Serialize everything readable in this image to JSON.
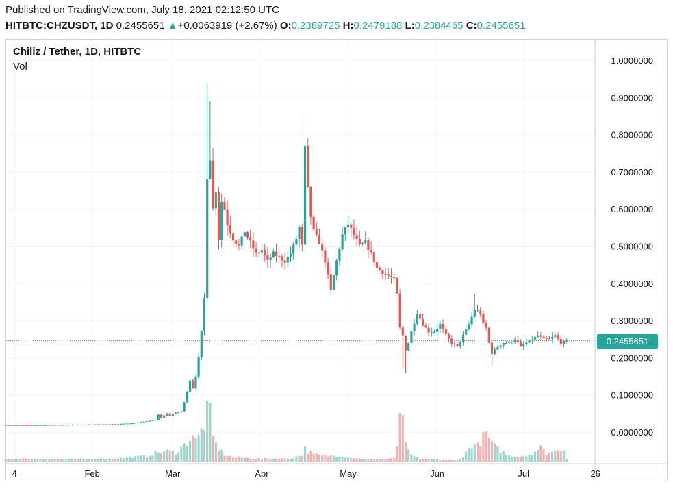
{
  "header": {
    "published": "Published on TradingView.com, July 18, 2021 02:12:50 UTC",
    "symbol": "HITBTC:CHZUSDT, 1D",
    "last": "0.2455651",
    "change_arrow": "▲",
    "change": "+0.0063919 (+2.67%)",
    "o_label": "O:",
    "o_value": "0.2389725",
    "h_label": "H:",
    "h_value": "0.2479188",
    "l_label": "L:",
    "l_value": "0.2384465",
    "c_label": "C:",
    "c_value": "0.2455651"
  },
  "legend": {
    "title": "Chiliz / Tether, 1D, HITBTC",
    "volume_label": "Vol"
  },
  "price_tag": "0.2455651",
  "colors": {
    "up": "#26a69a",
    "down": "#ef5350",
    "up_vol": "#9fd5cf",
    "down_vol": "#f3b1af",
    "grid": "#f0f3fa"
  },
  "chart_data": {
    "type": "candlestick",
    "title": "Chiliz / Tether, 1D, HITBTC",
    "y_axis_labels": [
      "1.0000000",
      "0.9000000",
      "0.8000000",
      "0.7000000",
      "0.6000000",
      "0.5000000",
      "0.4000000",
      "0.3000000",
      "0.2000000",
      "0.1000000",
      "0.0000000"
    ],
    "y_axis_values": [
      1.0,
      0.9,
      0.8,
      0.7,
      0.6,
      0.5,
      0.4,
      0.3,
      0.2,
      0.1,
      0.0
    ],
    "ylim": [
      -0.06,
      1.06
    ],
    "x_axis_labels": [
      "4",
      "Feb",
      "Mar",
      "Apr",
      "May",
      "Jun",
      "Jul",
      "26"
    ],
    "x_axis_days": [
      4,
      31,
      59,
      90,
      120,
      151,
      181,
      206
    ],
    "last_price": 0.2455651,
    "volume_label": "Vol",
    "anchors": [
      [
        1,
        0.019
      ],
      [
        10,
        0.0185
      ],
      [
        20,
        0.0195
      ],
      [
        30,
        0.0205
      ],
      [
        40,
        0.0215
      ],
      [
        45,
        0.024
      ],
      [
        50,
        0.029
      ],
      [
        53,
        0.033
      ],
      [
        54,
        0.047
      ],
      [
        55,
        0.038
      ],
      [
        56,
        0.045
      ],
      [
        57,
        0.05
      ],
      [
        58,
        0.044
      ],
      [
        60,
        0.052
      ],
      [
        62,
        0.056
      ],
      [
        63,
        0.08
      ],
      [
        64,
        0.11
      ],
      [
        65,
        0.14
      ],
      [
        66,
        0.12
      ],
      [
        67,
        0.15
      ],
      [
        68,
        0.2
      ],
      [
        69,
        0.27
      ],
      [
        70,
        0.36
      ],
      [
        71,
        0.68
      ],
      [
        72,
        0.73
      ],
      [
        73,
        0.6
      ],
      [
        74,
        0.65
      ],
      [
        75,
        0.52
      ],
      [
        76,
        0.62
      ],
      [
        77,
        0.6
      ],
      [
        78,
        0.56
      ],
      [
        80,
        0.52
      ],
      [
        82,
        0.5
      ],
      [
        84,
        0.54
      ],
      [
        86,
        0.51
      ],
      [
        88,
        0.48
      ],
      [
        90,
        0.49
      ],
      [
        92,
        0.46
      ],
      [
        94,
        0.48
      ],
      [
        96,
        0.47
      ],
      [
        98,
        0.46
      ],
      [
        100,
        0.48
      ],
      [
        102,
        0.52
      ],
      [
        103,
        0.55
      ],
      [
        104,
        0.5
      ],
      [
        105,
        0.77
      ],
      [
        106,
        0.66
      ],
      [
        107,
        0.58
      ],
      [
        108,
        0.54
      ],
      [
        110,
        0.51
      ],
      [
        112,
        0.46
      ],
      [
        114,
        0.38
      ],
      [
        116,
        0.46
      ],
      [
        118,
        0.53
      ],
      [
        120,
        0.56
      ],
      [
        122,
        0.53
      ],
      [
        124,
        0.5
      ],
      [
        126,
        0.51
      ],
      [
        128,
        0.48
      ],
      [
        130,
        0.44
      ],
      [
        132,
        0.43
      ],
      [
        134,
        0.42
      ],
      [
        136,
        0.41
      ],
      [
        137,
        0.37
      ],
      [
        138,
        0.28
      ],
      [
        139,
        0.26
      ],
      [
        140,
        0.22
      ],
      [
        141,
        0.24
      ],
      [
        142,
        0.27
      ],
      [
        144,
        0.32
      ],
      [
        146,
        0.29
      ],
      [
        148,
        0.27
      ],
      [
        150,
        0.27
      ],
      [
        152,
        0.29
      ],
      [
        154,
        0.26
      ],
      [
        156,
        0.24
      ],
      [
        158,
        0.23
      ],
      [
        160,
        0.26
      ],
      [
        162,
        0.29
      ],
      [
        164,
        0.33
      ],
      [
        166,
        0.32
      ],
      [
        167,
        0.29
      ],
      [
        168,
        0.28
      ],
      [
        169,
        0.24
      ],
      [
        170,
        0.21
      ],
      [
        172,
        0.23
      ],
      [
        174,
        0.24
      ],
      [
        176,
        0.24
      ],
      [
        178,
        0.25
      ],
      [
        180,
        0.23
      ],
      [
        182,
        0.24
      ],
      [
        184,
        0.25
      ],
      [
        186,
        0.26
      ],
      [
        188,
        0.25
      ],
      [
        190,
        0.25
      ],
      [
        192,
        0.26
      ],
      [
        194,
        0.24
      ],
      [
        196,
        0.2456
      ]
    ],
    "wick_spikes": [
      [
        71,
        0.94
      ],
      [
        72,
        0.89
      ],
      [
        105,
        0.84
      ],
      [
        106,
        0.79
      ],
      [
        139,
        0.17
      ],
      [
        140,
        0.16
      ],
      [
        164,
        0.37
      ],
      [
        170,
        0.18
      ]
    ],
    "volume_anchors": [
      [
        1,
        0.05
      ],
      [
        20,
        0.04
      ],
      [
        40,
        0.05
      ],
      [
        50,
        0.1
      ],
      [
        53,
        0.15
      ],
      [
        57,
        0.18
      ],
      [
        60,
        0.16
      ],
      [
        63,
        0.28
      ],
      [
        65,
        0.4
      ],
      [
        66,
        0.47
      ],
      [
        67,
        0.35
      ],
      [
        68,
        0.42
      ],
      [
        70,
        0.65
      ],
      [
        71,
        1.0
      ],
      [
        72,
        0.8
      ],
      [
        73,
        0.42
      ],
      [
        74,
        0.3
      ],
      [
        75,
        0.22
      ],
      [
        77,
        0.12
      ],
      [
        80,
        0.07
      ],
      [
        90,
        0.05
      ],
      [
        100,
        0.05
      ],
      [
        104,
        0.12
      ],
      [
        105,
        0.22
      ],
      [
        106,
        0.18
      ],
      [
        108,
        0.12
      ],
      [
        112,
        0.1
      ],
      [
        118,
        0.1
      ],
      [
        125,
        0.04
      ],
      [
        132,
        0.04
      ],
      [
        136,
        0.06
      ],
      [
        137,
        0.25
      ],
      [
        138,
        0.7
      ],
      [
        139,
        0.68
      ],
      [
        140,
        0.35
      ],
      [
        142,
        0.1
      ],
      [
        145,
        0.04
      ],
      [
        158,
        0.02
      ],
      [
        160,
        0.08
      ],
      [
        163,
        0.3
      ],
      [
        165,
        0.27
      ],
      [
        168,
        0.48
      ],
      [
        169,
        0.4
      ],
      [
        170,
        0.3
      ],
      [
        172,
        0.22
      ],
      [
        175,
        0.12
      ],
      [
        178,
        0.09
      ],
      [
        182,
        0.1
      ],
      [
        185,
        0.18
      ],
      [
        187,
        0.24
      ],
      [
        189,
        0.15
      ],
      [
        192,
        0.17
      ],
      [
        193,
        0.24
      ],
      [
        195,
        0.2
      ],
      [
        196,
        0.05
      ]
    ]
  }
}
